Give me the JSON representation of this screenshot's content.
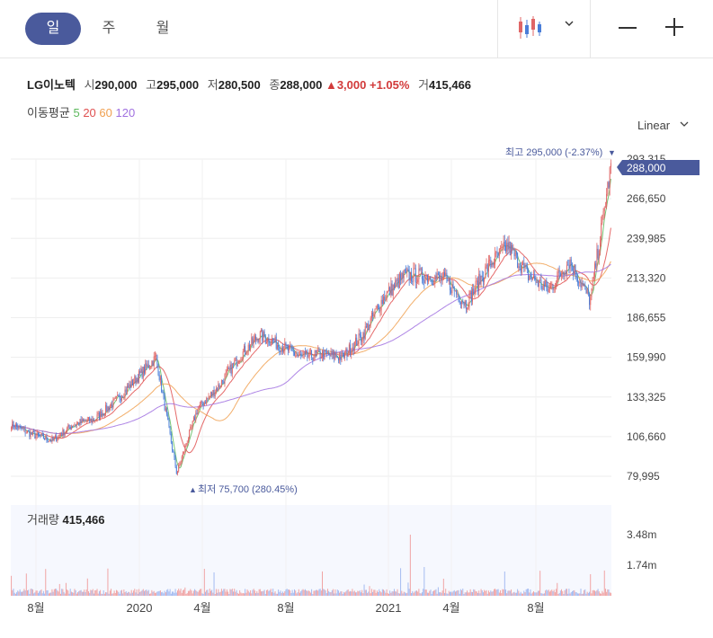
{
  "tabs": [
    {
      "label": "일",
      "active": true
    },
    {
      "label": "주",
      "active": false
    },
    {
      "label": "월",
      "active": false
    }
  ],
  "stock": {
    "name": "LG이노텍",
    "open_label": "시",
    "open": "290,000",
    "high_label": "고",
    "high": "295,000",
    "low_label": "저",
    "low": "280,500",
    "close_label": "종",
    "close": "288,000",
    "change": "3,000",
    "change_pct": "+1.05%",
    "volume_label": "거",
    "volume": "415,466"
  },
  "moving_average": {
    "label": "이동평균",
    "periods": [
      {
        "value": "5",
        "color": "#5cb85c"
      },
      {
        "value": "20",
        "color": "#e05050"
      },
      {
        "value": "60",
        "color": "#f0a050"
      },
      {
        "value": "120",
        "color": "#a070e0"
      }
    ]
  },
  "scale_selector": {
    "label": "Linear"
  },
  "colors": {
    "up": "#e06666",
    "down": "#4a7ed8",
    "accent": "#4a5a9c"
  },
  "chart_data": {
    "type": "candlestick",
    "y_ticks": [
      "293,315",
      "266,650",
      "239,985",
      "213,320",
      "186,655",
      "159,990",
      "133,325",
      "106,660",
      "79,995"
    ],
    "ylim": [
      79995,
      293315
    ],
    "x_ticks": [
      "8월",
      "2020",
      "4월",
      "8월",
      "2021",
      "4월",
      "8월"
    ],
    "current_price_label": "288,000",
    "high_annotation": "최고 295,000 (-2.37%)",
    "low_annotation": "최저 75,700 (280.45%)",
    "volume": {
      "label": "거래량",
      "last": "415,466",
      "y_ticks": [
        "3.48m",
        "1.74m"
      ]
    },
    "price_path": [
      [
        "2019-07",
        115000
      ],
      [
        "2019-08",
        108000
      ],
      [
        "2019-09",
        104000
      ],
      [
        "2019-10",
        115000
      ],
      [
        "2019-11",
        118000
      ],
      [
        "2019-12",
        130000
      ],
      [
        "2020-01",
        145000
      ],
      [
        "2020-02",
        160000
      ],
      [
        "2020-03",
        82000
      ],
      [
        "2020-04",
        125000
      ],
      [
        "2020-05",
        140000
      ],
      [
        "2020-06",
        160000
      ],
      [
        "2020-07",
        175000
      ],
      [
        "2020-08",
        168000
      ],
      [
        "2020-09",
        160000
      ],
      [
        "2020-10",
        162000
      ],
      [
        "2020-11",
        160000
      ],
      [
        "2020-12",
        175000
      ],
      [
        "2021-01",
        200000
      ],
      [
        "2021-02",
        215000
      ],
      [
        "2021-03",
        215000
      ],
      [
        "2021-04",
        212000
      ],
      [
        "2021-05",
        196000
      ],
      [
        "2021-06",
        220000
      ],
      [
        "2021-07",
        235000
      ],
      [
        "2021-08",
        215000
      ],
      [
        "2021-09",
        205000
      ],
      [
        "2021-10",
        225000
      ],
      [
        "2021-11",
        198000
      ],
      [
        "2021-12",
        288000
      ]
    ]
  }
}
